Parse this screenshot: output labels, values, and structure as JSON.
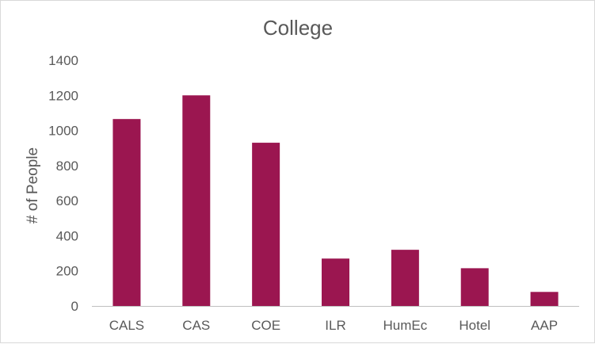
{
  "chart_data": {
    "type": "bar",
    "title": "College",
    "xlabel": "",
    "ylabel": "# of People",
    "categories": [
      "CALS",
      "CAS",
      "COE",
      "ILR",
      "HumEc",
      "Hotel",
      "AAP"
    ],
    "values": [
      1065,
      1200,
      930,
      270,
      320,
      215,
      80
    ],
    "ylim": [
      0,
      1400
    ],
    "yticks": [
      0,
      200,
      400,
      600,
      800,
      1000,
      1200,
      1400
    ],
    "grid": false,
    "legend": "none",
    "bar_color": "#9b1650",
    "axis_color": "#bfbfbf",
    "text_color": "#595959"
  }
}
